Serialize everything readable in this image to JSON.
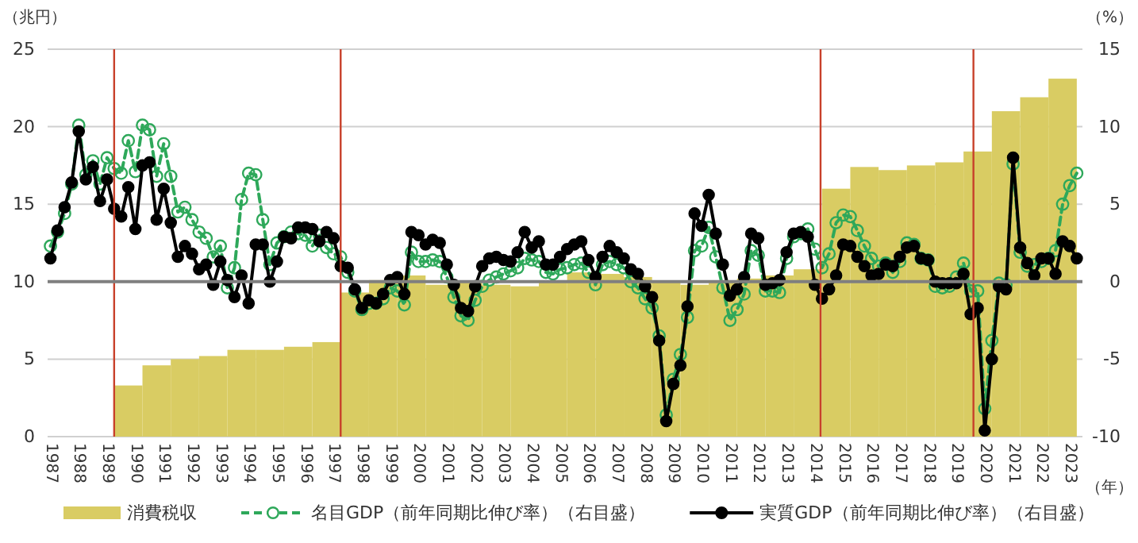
{
  "chart_data": {
    "type": "bar",
    "xlabel": "（年）",
    "ylabel": "（兆円）",
    "y2label": "（%）",
    "legend": "bottom",
    "grid": "y",
    "xlim": [
      1986.9,
      2023.45
    ],
    "ylim": [
      0,
      25
    ],
    "y2lim": [
      -10,
      15
    ],
    "xticks": [
      1987,
      1988,
      1989,
      1990,
      1991,
      1992,
      1993,
      1994,
      1995,
      1996,
      1997,
      1998,
      1999,
      2000,
      2001,
      2002,
      2003,
      2004,
      2005,
      2006,
      2007,
      2008,
      2009,
      2010,
      2011,
      2012,
      2013,
      2014,
      2015,
      2016,
      2017,
      2018,
      2019,
      2020,
      2021,
      2022,
      2023
    ],
    "yticks": [
      0,
      5,
      10,
      15,
      20,
      25
    ],
    "y2ticks": [
      -10,
      -5,
      0,
      5,
      10,
      15
    ],
    "ref_lines": [
      {
        "axis": "x",
        "value": 1989.25,
        "color": "#c8402a"
      },
      {
        "axis": "x",
        "value": 1997.25,
        "color": "#c8402a"
      },
      {
        "axis": "x",
        "value": 2014.2,
        "color": "#c8402a"
      },
      {
        "axis": "x",
        "value": 2019.6,
        "color": "#c8402a"
      },
      {
        "axis": "y2",
        "value": 0,
        "color": "#7f7f7f"
      }
    ],
    "series": [
      {
        "name": "消費税収",
        "color": "#d9cc63",
        "x": [
          1989.75,
          1990.75,
          1991.75,
          1992.75,
          1993.75,
          1994.75,
          1995.75,
          1996.75,
          1997.75,
          1998.75,
          1999.75,
          2000.75,
          2001.75,
          2002.75,
          2003.75,
          2004.75,
          2005.75,
          2006.75,
          2007.75,
          2008.75,
          2009.75,
          2010.75,
          2011.75,
          2012.75,
          2013.75,
          2014.75,
          2015.75,
          2016.75,
          2017.75,
          2018.75,
          2019.75,
          2020.75,
          2021.75,
          2022.75
        ],
        "values": [
          3.3,
          4.6,
          5.0,
          5.2,
          5.6,
          5.6,
          5.8,
          6.1,
          9.3,
          10.1,
          10.4,
          9.8,
          10.0,
          9.8,
          9.7,
          10.0,
          10.6,
          10.5,
          10.3,
          10.0,
          9.8,
          10.0,
          10.2,
          10.4,
          10.8,
          16.0,
          17.4,
          17.2,
          17.5,
          17.7,
          18.4,
          21.0,
          21.9,
          23.1
        ]
      },
      {
        "name": "名目GDP（前年同期比伸び率）（右目盛）",
        "type": "line",
        "axis": "y2",
        "color": "#2ea85a",
        "marker": "circle",
        "line_style": "dashed",
        "x": [
          1987,
          1987.25,
          1987.5,
          1987.75,
          1988,
          1988.25,
          1988.5,
          1988.75,
          1989,
          1989.25,
          1989.5,
          1989.75,
          1990,
          1990.25,
          1990.5,
          1990.75,
          1991,
          1991.25,
          1991.5,
          1991.75,
          1992,
          1992.25,
          1992.5,
          1992.75,
          1993,
          1993.25,
          1993.5,
          1993.75,
          1994,
          1994.25,
          1994.5,
          1994.75,
          1995,
          1995.25,
          1995.5,
          1995.75,
          1996,
          1996.25,
          1996.5,
          1996.75,
          1997,
          1997.25,
          1997.5,
          1997.75,
          1998,
          1998.25,
          1998.5,
          1998.75,
          1999,
          1999.25,
          1999.5,
          1999.75,
          2000,
          2000.25,
          2000.5,
          2000.75,
          2001,
          2001.25,
          2001.5,
          2001.75,
          2002,
          2002.25,
          2002.5,
          2002.75,
          2003,
          2003.25,
          2003.5,
          2003.75,
          2004,
          2004.25,
          2004.5,
          2004.75,
          2005,
          2005.25,
          2005.5,
          2005.75,
          2006,
          2006.25,
          2006.5,
          2006.75,
          2007,
          2007.25,
          2007.5,
          2007.75,
          2008,
          2008.25,
          2008.5,
          2008.75,
          2009,
          2009.25,
          2009.5,
          2009.75,
          2010,
          2010.25,
          2010.5,
          2010.75,
          2011,
          2011.25,
          2011.5,
          2011.75,
          2012,
          2012.25,
          2012.5,
          2012.75,
          2013,
          2013.25,
          2013.5,
          2013.75,
          2014,
          2014.25,
          2014.5,
          2014.75,
          2015,
          2015.25,
          2015.5,
          2015.75,
          2016,
          2016.25,
          2016.5,
          2016.75,
          2017,
          2017.25,
          2017.5,
          2017.75,
          2018,
          2018.25,
          2018.5,
          2018.75,
          2019,
          2019.25,
          2019.5,
          2019.75,
          2020,
          2020.25,
          2020.5,
          2020.75,
          2021,
          2021.25,
          2021.5,
          2021.75,
          2022,
          2022.25,
          2022.5,
          2022.75,
          2023,
          2023.25
        ],
        "values": [
          2.3,
          3.2,
          4.4,
          6.3,
          10.1,
          6.9,
          7.8,
          6.3,
          8.0,
          7.3,
          7.0,
          9.1,
          7.1,
          10.1,
          9.8,
          6.8,
          8.9,
          6.8,
          4.5,
          4.8,
          4.0,
          3.2,
          2.8,
          1.6,
          2.3,
          -0.4,
          0.9,
          5.3,
          7.0,
          6.9,
          4.0,
          1.1,
          2.5,
          2.9,
          3.2,
          3.1,
          3.0,
          2.3,
          3.0,
          2.2,
          1.8,
          1.6,
          0.6,
          -0.6,
          -1.8,
          -1.4,
          -1.4,
          -1.1,
          -0.4,
          -0.6,
          -1.5,
          1.9,
          1.3,
          1.3,
          1.4,
          1.3,
          0.3,
          -1.0,
          -2.2,
          -2.5,
          -1.2,
          -0.3,
          0.1,
          0.3,
          0.5,
          0.7,
          0.9,
          1.5,
          1.4,
          1.3,
          0.6,
          0.5,
          0.8,
          0.9,
          1.1,
          1.2,
          0.6,
          -0.2,
          1.1,
          1.3,
          1.1,
          0.9,
          0.0,
          -0.4,
          -1.1,
          -1.7,
          -3.5,
          -8.6,
          -6.3,
          -4.7,
          -2.3,
          2.0,
          2.3,
          3.5,
          1.6,
          -0.4,
          -2.5,
          -1.8,
          -0.8,
          2.0,
          1.7,
          -0.6,
          -0.6,
          -0.7,
          1.5,
          2.9,
          3.1,
          3.4,
          2.1,
          0.9,
          1.8,
          3.8,
          4.3,
          4.2,
          3.3,
          2.3,
          1.5,
          1.0,
          1.2,
          0.6,
          1.3,
          2.5,
          2.4,
          1.5,
          1.4,
          -0.3,
          -0.4,
          -0.3,
          0.3,
          1.2,
          -0.6,
          -0.6,
          -8.2,
          -3.8,
          -0.1,
          -0.2,
          7.6,
          1.9,
          1.0,
          1.1,
          1.3,
          1.5,
          2.0,
          5.0,
          6.2,
          7.0
        ]
      },
      {
        "name": "実質GDP（前年同期比伸び率）（右目盛）",
        "type": "line",
        "axis": "y2",
        "color": "#000000",
        "marker": "circle",
        "line_style": "solid",
        "x": [
          1987,
          1987.25,
          1987.5,
          1987.75,
          1988,
          1988.25,
          1988.5,
          1988.75,
          1989,
          1989.25,
          1989.5,
          1989.75,
          1990,
          1990.25,
          1990.5,
          1990.75,
          1991,
          1991.25,
          1991.5,
          1991.75,
          1992,
          1992.25,
          1992.5,
          1992.75,
          1993,
          1993.25,
          1993.5,
          1993.75,
          1994,
          1994.25,
          1994.5,
          1994.75,
          1995,
          1995.25,
          1995.5,
          1995.75,
          1996,
          1996.25,
          1996.5,
          1996.75,
          1997,
          1997.25,
          1997.5,
          1997.75,
          1998,
          1998.25,
          1998.5,
          1998.75,
          1999,
          1999.25,
          1999.5,
          1999.75,
          2000,
          2000.25,
          2000.5,
          2000.75,
          2001,
          2001.25,
          2001.5,
          2001.75,
          2002,
          2002.25,
          2002.5,
          2002.75,
          2003,
          2003.25,
          2003.5,
          2003.75,
          2004,
          2004.25,
          2004.5,
          2004.75,
          2005,
          2005.25,
          2005.5,
          2005.75,
          2006,
          2006.25,
          2006.5,
          2006.75,
          2007,
          2007.25,
          2007.5,
          2007.75,
          2008,
          2008.25,
          2008.5,
          2008.75,
          2009,
          2009.25,
          2009.5,
          2009.75,
          2010,
          2010.25,
          2010.5,
          2010.75,
          2011,
          2011.25,
          2011.5,
          2011.75,
          2012,
          2012.25,
          2012.5,
          2012.75,
          2013,
          2013.25,
          2013.5,
          2013.75,
          2014,
          2014.25,
          2014.5,
          2014.75,
          2015,
          2015.25,
          2015.5,
          2015.75,
          2016,
          2016.25,
          2016.5,
          2016.75,
          2017,
          2017.25,
          2017.5,
          2017.75,
          2018,
          2018.25,
          2018.5,
          2018.75,
          2019,
          2019.25,
          2019.5,
          2019.75,
          2020,
          2020.25,
          2020.5,
          2020.75,
          2021,
          2021.25,
          2021.5,
          2021.75,
          2022,
          2022.25,
          2022.5,
          2022.75,
          2023,
          2023.25
        ],
        "values": [
          1.5,
          3.3,
          4.8,
          6.4,
          9.7,
          6.6,
          7.4,
          5.2,
          6.6,
          4.7,
          4.2,
          6.1,
          3.4,
          7.5,
          7.7,
          4.0,
          6.0,
          3.8,
          1.6,
          2.3,
          1.8,
          0.8,
          1.1,
          -0.2,
          1.3,
          0.1,
          -1.0,
          0.4,
          -1.4,
          2.4,
          2.4,
          0.0,
          1.3,
          2.9,
          2.8,
          3.5,
          3.5,
          3.4,
          2.6,
          3.2,
          2.8,
          1.0,
          0.9,
          -0.5,
          -1.7,
          -1.2,
          -1.4,
          -0.8,
          0.1,
          0.3,
          -0.8,
          3.2,
          3.0,
          2.4,
          2.7,
          2.5,
          1.1,
          -0.2,
          -1.7,
          -1.9,
          -0.3,
          1.0,
          1.5,
          1.6,
          1.4,
          1.3,
          1.9,
          3.2,
          2.2,
          2.6,
          1.1,
          1.1,
          1.6,
          2.1,
          2.4,
          2.6,
          1.4,
          0.3,
          1.6,
          2.3,
          1.9,
          1.5,
          0.8,
          0.5,
          -0.3,
          -1.0,
          -3.8,
          -9.0,
          -6.6,
          -5.4,
          -1.6,
          4.4,
          3.6,
          5.6,
          3.1,
          1.1,
          -0.9,
          -0.5,
          0.3,
          3.1,
          2.8,
          -0.2,
          -0.1,
          0.1,
          1.9,
          3.1,
          3.2,
          2.9,
          -0.2,
          -1.1,
          -0.5,
          0.4,
          2.4,
          2.3,
          1.6,
          1.0,
          0.4,
          0.5,
          1.1,
          1.0,
          1.6,
          2.2,
          2.3,
          1.5,
          1.4,
          0.0,
          -0.1,
          -0.1,
          -0.1,
          0.5,
          -2.1,
          -1.7,
          -9.6,
          -5.0,
          -0.3,
          -0.5,
          8.0,
          2.2,
          1.2,
          0.4,
          1.5,
          1.5,
          0.5,
          2.6,
          2.3,
          1.5
        ]
      }
    ]
  }
}
